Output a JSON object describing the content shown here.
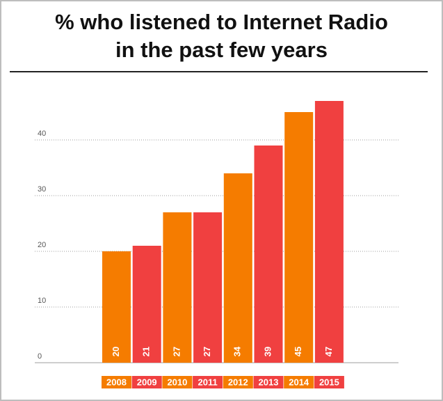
{
  "title_line1": "% who listened to Internet Radio",
  "title_line2": "in the past few years",
  "colors": {
    "orange": "#f57c00",
    "red": "#f04040",
    "grid": "#9e9e9e"
  },
  "chart_data": {
    "type": "bar",
    "title": "% who listened to Internet Radio in the past few years",
    "categories": [
      "2008",
      "2009",
      "2010",
      "2011",
      "2012",
      "2013",
      "2014",
      "2015"
    ],
    "values": [
      20,
      21,
      27,
      27,
      34,
      39,
      45,
      47
    ],
    "bar_colors": [
      "#f57c00",
      "#f04040",
      "#f57c00",
      "#f04040",
      "#f57c00",
      "#f04040",
      "#f57c00",
      "#f04040"
    ],
    "yticks": [
      0,
      10,
      20,
      30,
      40
    ],
    "ylim": [
      0,
      50
    ],
    "grid": true,
    "xlabel": "",
    "ylabel": ""
  }
}
